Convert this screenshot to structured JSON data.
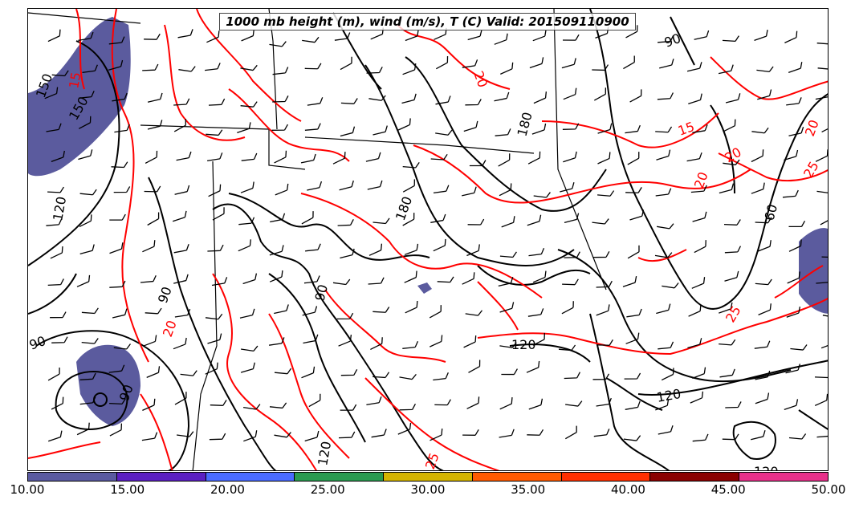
{
  "title": "1000 mb height (m), wind (m/s), T (C) Valid: 2015091109​00",
  "height_contour_labels": [
    "150",
    "120",
    "90",
    "180",
    "180",
    "150",
    "90",
    "90",
    "120",
    "120",
    "120",
    "90",
    "60",
    "90",
    "120"
  ],
  "temperature_contour_labels": [
    "15",
    "20",
    "20",
    "15",
    "20",
    "25",
    "20",
    "25",
    "20",
    "25"
  ],
  "colors": {
    "shading": "#5b5b9e",
    "height_contour": "#000000",
    "temperature_contour": "#ff0000"
  },
  "colorbar": {
    "ticks": [
      "10.00",
      "15.00",
      "20.00",
      "25.00",
      "30.00",
      "35.00",
      "40.00",
      "45.00",
      "50.00"
    ],
    "colors": [
      "#5a5aa0",
      "#5b1fc2",
      "#4a6bff",
      "#2a9a50",
      "#d4b400",
      "#ff5a00",
      "#ff3000",
      "#8a0000",
      "#e8308a"
    ]
  }
}
